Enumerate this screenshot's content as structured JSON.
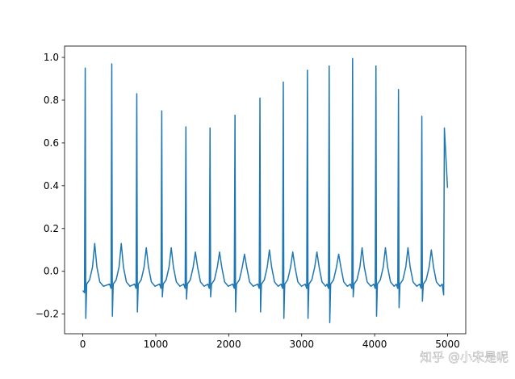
{
  "chart_data": {
    "type": "line",
    "x": [
      0,
      23,
      33,
      41,
      53,
      93,
      133,
      163,
      193,
      233,
      283,
      367,
      387,
      397,
      405,
      417,
      457,
      497,
      527,
      557,
      597,
      647,
      710,
      730,
      740,
      748,
      760,
      800,
      840,
      870,
      900,
      940,
      990,
      1052,
      1072,
      1082,
      1090,
      1102,
      1142,
      1182,
      1212,
      1242,
      1282,
      1332,
      1383,
      1403,
      1413,
      1421,
      1433,
      1473,
      1513,
      1543,
      1573,
      1613,
      1663,
      1714,
      1734,
      1744,
      1752,
      1764,
      1804,
      1844,
      1874,
      1904,
      1944,
      1994,
      2056,
      2076,
      2086,
      2094,
      2106,
      2146,
      2186,
      2216,
      2246,
      2286,
      2336,
      2398,
      2418,
      2428,
      2436,
      2448,
      2488,
      2528,
      2558,
      2588,
      2628,
      2678,
      2718,
      2738,
      2748,
      2756,
      2768,
      2808,
      2848,
      2878,
      2908,
      2948,
      2998,
      3049,
      3069,
      3079,
      3087,
      3099,
      3139,
      3179,
      3209,
      3239,
      3279,
      3329,
      3347,
      3367,
      3377,
      3385,
      3397,
      3437,
      3477,
      3507,
      3537,
      3577,
      3627,
      3668,
      3688,
      3698,
      3706,
      3718,
      3758,
      3798,
      3828,
      3858,
      3898,
      3948,
      3988,
      4008,
      4018,
      4026,
      4038,
      4078,
      4118,
      4148,
      4178,
      4218,
      4268,
      4297,
      4317,
      4327,
      4335,
      4347,
      4387,
      4427,
      4457,
      4487,
      4527,
      4577,
      4617,
      4637,
      4647,
      4655,
      4667,
      4707,
      4747,
      4777,
      4807,
      4847,
      4897,
      4926,
      4946,
      4956,
      4999
    ],
    "values": [
      -0.09,
      -0.1,
      0.95,
      -0.22,
      -0.06,
      -0.04,
      0.02,
      0.13,
      0.02,
      -0.05,
      -0.07,
      -0.06,
      -0.08,
      0.97,
      -0.21,
      -0.06,
      -0.04,
      0.02,
      0.13,
      0.02,
      -0.05,
      -0.07,
      -0.06,
      -0.08,
      0.83,
      -0.19,
      -0.06,
      -0.04,
      0.02,
      0.11,
      0.02,
      -0.05,
      -0.07,
      -0.06,
      -0.08,
      0.75,
      -0.12,
      -0.06,
      -0.04,
      0.02,
      0.11,
      0.02,
      -0.05,
      -0.07,
      -0.06,
      -0.08,
      0.675,
      -0.13,
      -0.06,
      -0.04,
      0.02,
      0.09,
      0.02,
      -0.05,
      -0.07,
      -0.06,
      -0.08,
      0.67,
      -0.12,
      -0.06,
      -0.04,
      0.02,
      0.09,
      0.02,
      -0.05,
      -0.07,
      -0.06,
      -0.08,
      0.73,
      -0.19,
      -0.06,
      -0.04,
      0.02,
      0.08,
      0.02,
      -0.05,
      -0.07,
      -0.06,
      -0.08,
      0.81,
      -0.19,
      -0.06,
      -0.04,
      0.02,
      0.1,
      0.02,
      -0.05,
      -0.07,
      -0.06,
      -0.08,
      0.885,
      -0.22,
      -0.06,
      -0.04,
      0.02,
      0.09,
      0.02,
      -0.05,
      -0.07,
      -0.06,
      -0.08,
      0.94,
      -0.22,
      -0.06,
      -0.04,
      0.02,
      0.09,
      0.02,
      -0.05,
      -0.07,
      -0.06,
      -0.08,
      0.96,
      -0.24,
      -0.06,
      -0.04,
      0.02,
      0.08,
      0.02,
      -0.05,
      -0.07,
      -0.06,
      -0.08,
      0.995,
      -0.12,
      -0.06,
      -0.04,
      0.02,
      0.11,
      0.02,
      -0.05,
      -0.07,
      -0.06,
      -0.08,
      0.96,
      -0.21,
      -0.06,
      -0.04,
      0.02,
      0.11,
      0.02,
      -0.05,
      -0.07,
      -0.06,
      -0.08,
      0.85,
      -0.17,
      -0.06,
      -0.04,
      0.02,
      0.11,
      0.02,
      -0.05,
      -0.07,
      -0.06,
      -0.08,
      0.725,
      -0.14,
      -0.06,
      -0.04,
      0.02,
      0.1,
      0.02,
      -0.05,
      -0.07,
      -0.06,
      -0.11,
      0.67,
      0.39
    ],
    "color": "#1f77b4",
    "xlim": [
      -250,
      5249
    ],
    "xticks": [
      0,
      1000,
      2000,
      3000,
      4000,
      5000
    ],
    "ylim": [
      -0.292,
      1.053
    ],
    "yticks": [
      {
        "value": -0.2,
        "label": "−0.2"
      },
      {
        "value": 0.0,
        "label": "0.0"
      },
      {
        "value": 0.2,
        "label": "0.2"
      },
      {
        "value": 0.4,
        "label": "0.4"
      },
      {
        "value": 0.6,
        "label": "0.6"
      },
      {
        "value": 0.8,
        "label": "0.8"
      },
      {
        "value": 1.0,
        "label": "1.0"
      }
    ],
    "grid": false,
    "watermark": "知乎 @小宋是呢"
  }
}
